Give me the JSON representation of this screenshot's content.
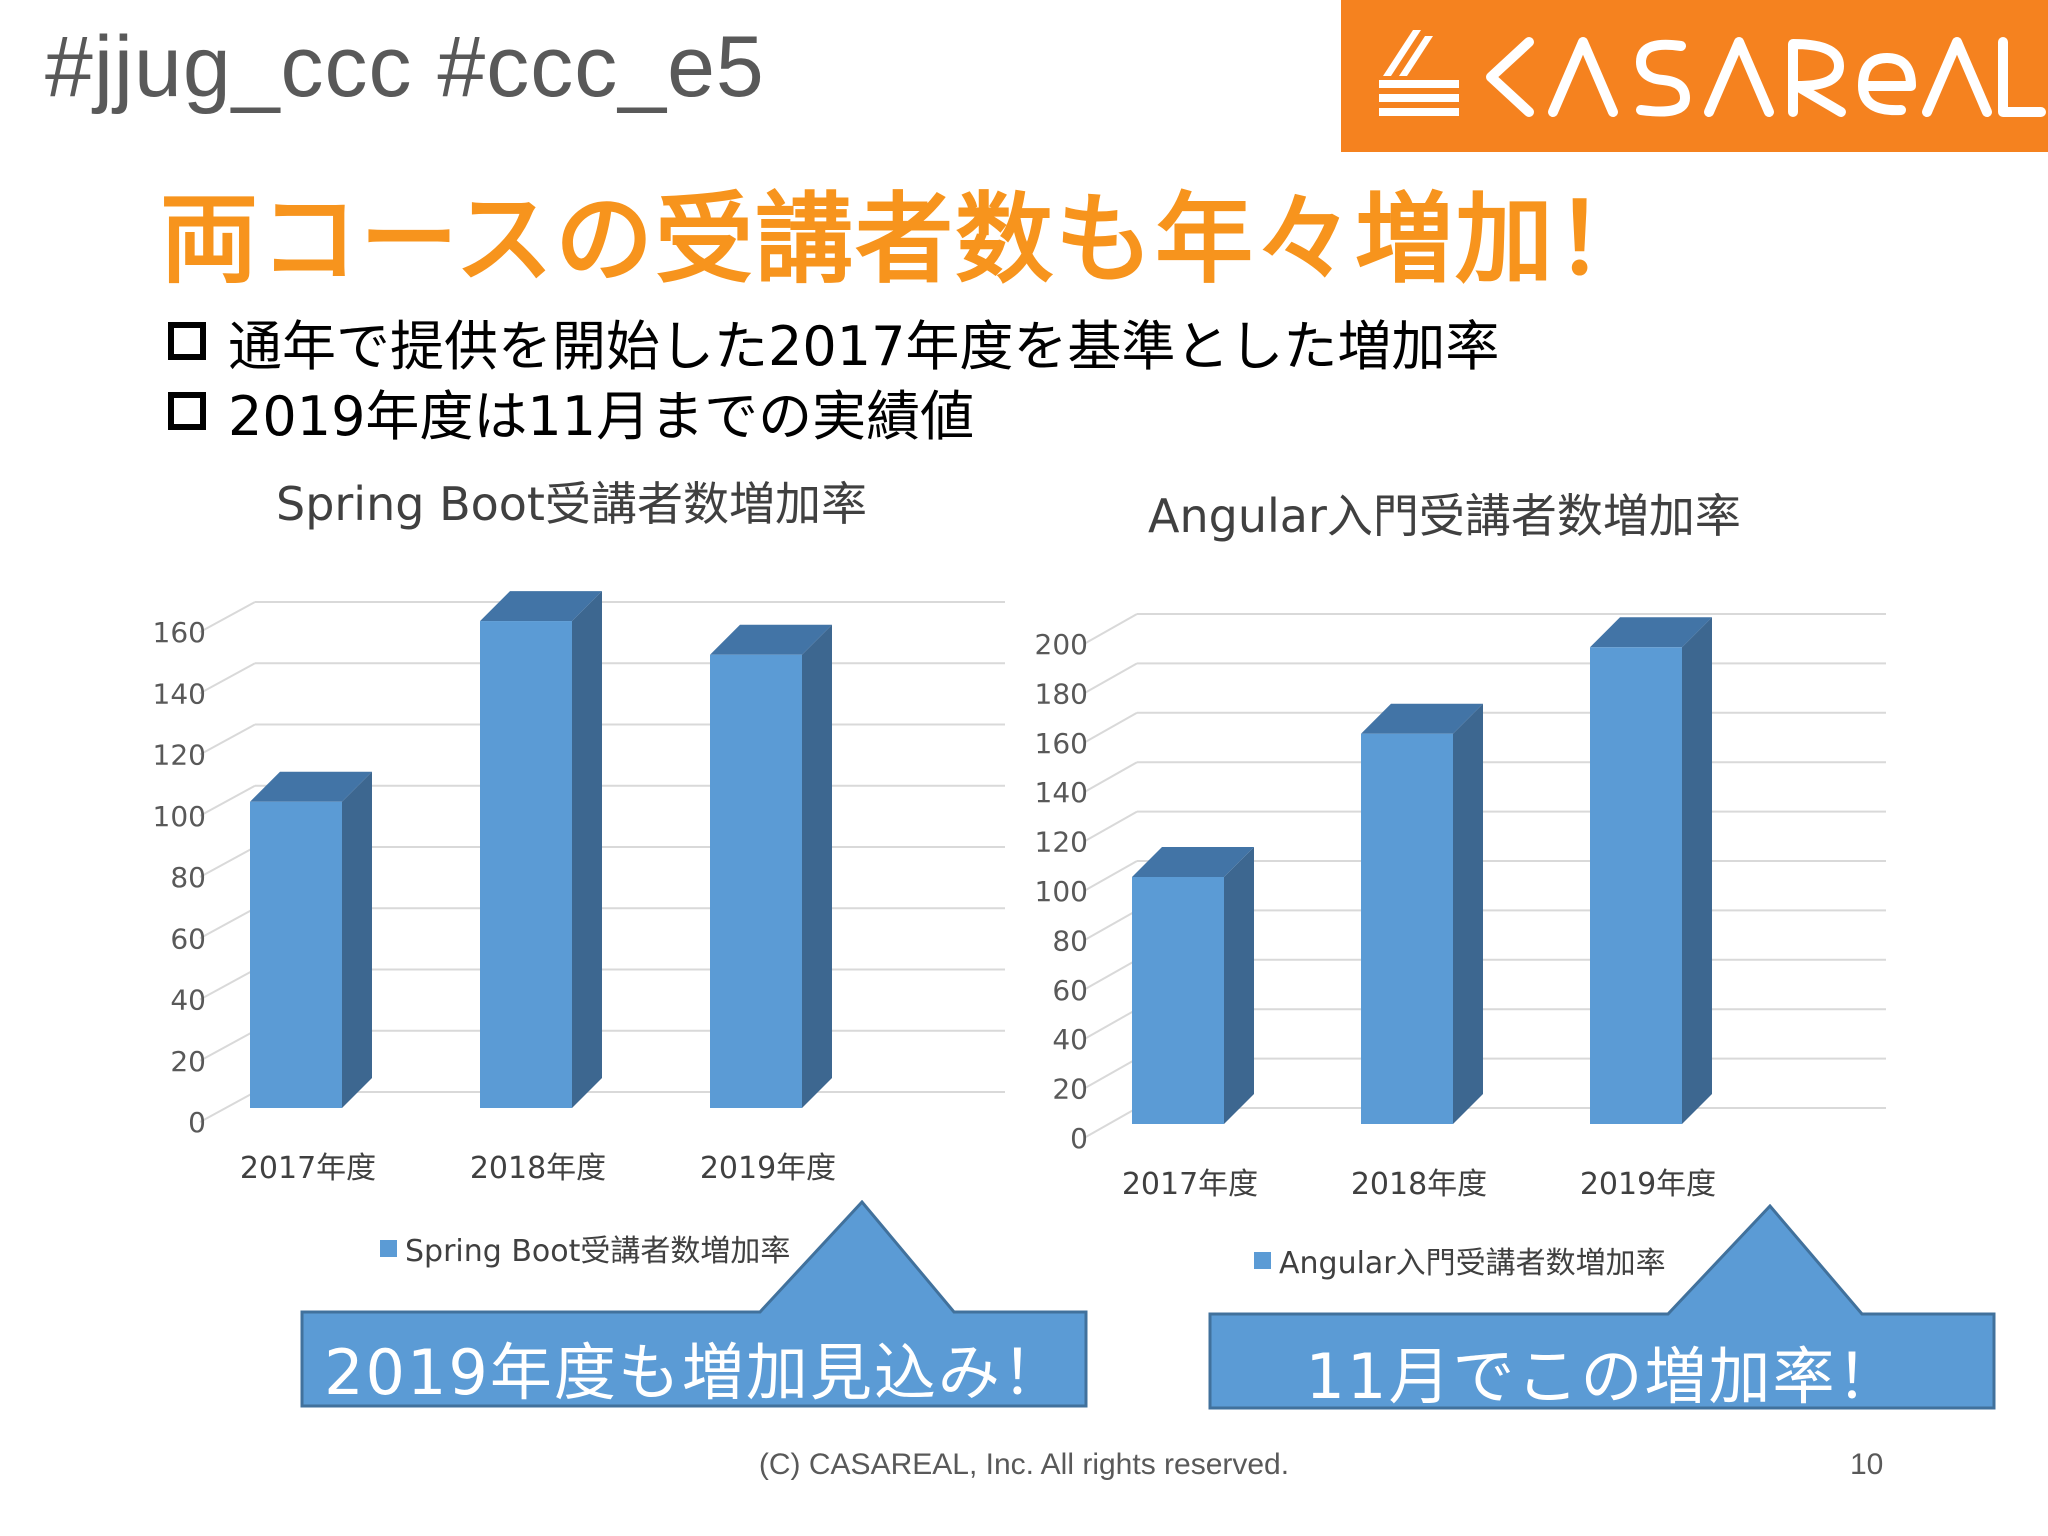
{
  "header": {
    "hashtag": "#jjug_ccc #ccc_e5",
    "logo_text": "CASAREAL",
    "brand_color": "#f5821f"
  },
  "title": "両コースの受講者数も年々増加！",
  "bullets": [
    "通年で提供を開始した2017年度を基準とした増加率",
    "2019年度は11月までの実績値"
  ],
  "chart_data": [
    {
      "type": "bar",
      "title": "Spring Boot受講者数増加率",
      "categories": [
        "2017年度",
        "2018年度",
        "2019年度"
      ],
      "series": [
        {
          "name": "Spring Boot受講者数増加率",
          "values": [
            100,
            159,
            148
          ]
        }
      ],
      "ylim": [
        0,
        160
      ],
      "yticks": [
        "0",
        "20",
        "40",
        "60",
        "80",
        "100",
        "120",
        "140",
        "160"
      ],
      "grid": true,
      "legend_position": "bottom",
      "bar_color": "#5b9bd5"
    },
    {
      "type": "bar",
      "title": "Angular入門受講者数増加率",
      "categories": [
        "2017年度",
        "2018年度",
        "2019年度"
      ],
      "series": [
        {
          "name": "Angular入門受講者数増加率",
          "values": [
            100,
            158,
            193
          ]
        }
      ],
      "ylim": [
        0,
        200
      ],
      "yticks": [
        "0",
        "20",
        "40",
        "60",
        "80",
        "100",
        "120",
        "140",
        "160",
        "180",
        "200"
      ],
      "grid": true,
      "legend_position": "bottom",
      "bar_color": "#5b9bd5"
    }
  ],
  "callouts": [
    "2019年度も増加見込み！",
    "11月でこの増加率！"
  ],
  "footer": {
    "copyright": "(C) CASAREAL, Inc. All rights reserved.",
    "page": "10"
  }
}
